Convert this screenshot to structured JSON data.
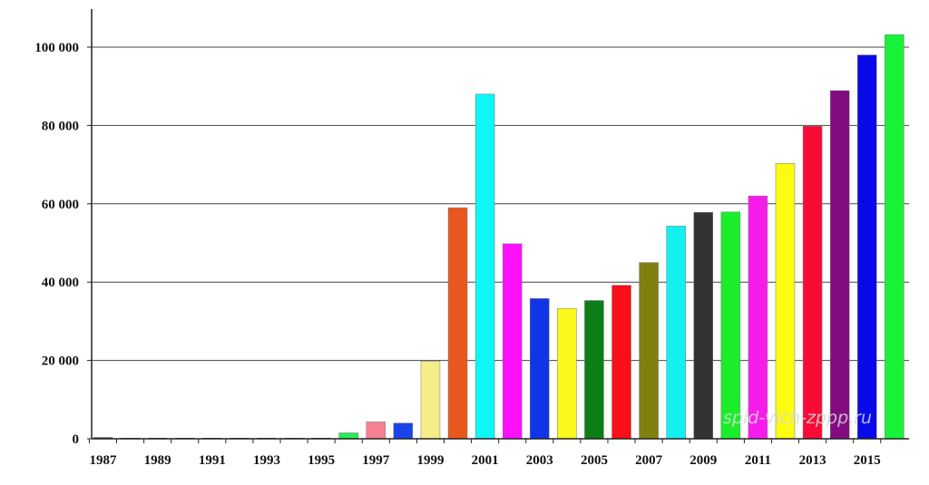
{
  "chart_data": {
    "type": "bar",
    "title": "",
    "xlabel": "",
    "ylabel": "",
    "grid": true,
    "legend": "none",
    "ylim": [
      0,
      110000
    ],
    "yticks": [
      0,
      20000,
      40000,
      60000,
      80000,
      100000
    ],
    "ytick_labels": [
      "0",
      "20 000",
      "40 000",
      "60 000",
      "80 000",
      "100 000"
    ],
    "categories": [
      "1987",
      "1988",
      "1989",
      "1990",
      "1991",
      "1992",
      "1993",
      "1994",
      "1995",
      "1996",
      "1997",
      "1998",
      "1999",
      "2000",
      "2001",
      "2002",
      "2003",
      "2004",
      "2005",
      "2006",
      "2007",
      "2008",
      "2009",
      "2010",
      "2011",
      "2012",
      "2013",
      "2014",
      "2015",
      "2016"
    ],
    "xtick_labels": [
      "1987",
      "1989",
      "1991",
      "1993",
      "1995",
      "1997",
      "1999",
      "2001",
      "2003",
      "2005",
      "2007",
      "2009",
      "2011",
      "2013",
      "2015"
    ],
    "values": [
      100,
      0,
      0,
      0,
      0,
      0,
      0,
      0,
      0,
      1500,
      4300,
      4000,
      19800,
      59000,
      88000,
      49800,
      35800,
      33300,
      35300,
      39200,
      45000,
      54300,
      57800,
      57900,
      62000,
      70300,
      79800,
      88900,
      98000,
      103200
    ],
    "colors": [
      "#444444",
      "#444444",
      "#444444",
      "#444444",
      "#444444",
      "#444444",
      "#444444",
      "#444444",
      "#444444",
      "#22ee55",
      "#f78090",
      "#1a44e8",
      "#f3ee8a",
      "#e8571e",
      "#0ff6f6",
      "#ff10ff",
      "#1035e8",
      "#fcf71c",
      "#0c7e16",
      "#fc0e18",
      "#808010",
      "#12f0f0",
      "#333333",
      "#1aee28",
      "#f81cec",
      "#fcfc10",
      "#f80c36",
      "#820b82",
      "#0a0ae8",
      "#18f238"
    ]
  },
  "watermark": "spid-vich-zppp.ru"
}
